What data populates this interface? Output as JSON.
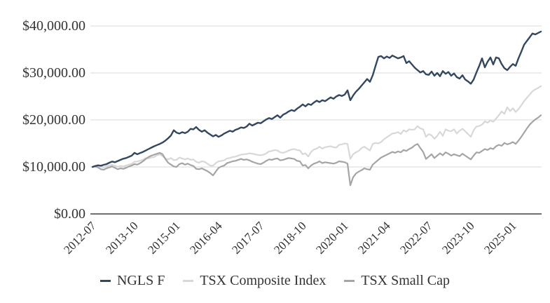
{
  "colors": {
    "background": "#FFFFFF",
    "gridline": "#D9D9D9",
    "axis_line": "#404040",
    "label_text": "#333333"
  },
  "chart_data": {
    "type": "line",
    "title": "",
    "grid": true,
    "legend_position": "bottom",
    "x_unit": "month",
    "x_start_month": "2012-07",
    "x_end_month": "2025-11",
    "x_tick_labels": [
      "2012-07",
      "2013-10",
      "2015-01",
      "2016-04",
      "2017-07",
      "2018-10",
      "2020-01",
      "2021-04",
      "2022-07",
      "2023-10",
      "2025-01"
    ],
    "x_tick_indices": [
      0,
      15,
      30,
      45,
      60,
      75,
      90,
      105,
      120,
      135,
      150
    ],
    "y_tick_labels": [
      "$0.00",
      "$10,000.00",
      "$20,000.00",
      "$30,000.00",
      "$40,000.00"
    ],
    "y_tick_values": [
      0,
      10000,
      20000,
      30000,
      40000
    ],
    "ylim": [
      0,
      42500
    ],
    "series": [
      {
        "name": "NGLS F",
        "color": "#33475E",
        "line_width": 2.4,
        "values": [
          10000,
          10200,
          10350,
          10250,
          10450,
          10600,
          10900,
          11150,
          11000,
          11250,
          11500,
          11750,
          11900,
          12150,
          12400,
          13000,
          12700,
          12950,
          13200,
          13500,
          13800,
          14100,
          14400,
          14650,
          14900,
          15200,
          15600,
          16100,
          16700,
          17800,
          17300,
          17100,
          17400,
          17200,
          17500,
          18100,
          18000,
          18500,
          17900,
          17500,
          17800,
          17300,
          16900,
          16500,
          16800,
          16400,
          16700,
          17100,
          17400,
          17700,
          17500,
          17900,
          18100,
          18400,
          18300,
          18600,
          19200,
          18800,
          19100,
          19400,
          19300,
          19700,
          20100,
          20400,
          20200,
          20600,
          21000,
          20500,
          21100,
          21400,
          21800,
          22100,
          21900,
          22400,
          22800,
          23300,
          22900,
          23400,
          23200,
          23700,
          24100,
          23800,
          24200,
          24000,
          24400,
          24800,
          24500,
          25000,
          25300,
          25100,
          25400,
          26300,
          24200,
          25200,
          26000,
          26600,
          27300,
          28000,
          28700,
          28100,
          29500,
          31500,
          33400,
          33600,
          33100,
          33500,
          33200,
          33700,
          33400,
          33100,
          33300,
          33600,
          32100,
          32500,
          31800,
          31100,
          30600,
          30100,
          30400,
          29700,
          29600,
          30300,
          29400,
          30000,
          29300,
          30400,
          29800,
          30200,
          29400,
          29900,
          29100,
          28800,
          29500,
          28600,
          28200,
          27700,
          28600,
          30100,
          31500,
          33100,
          31200,
          32400,
          33300,
          31800,
          33300,
          33100,
          31900,
          31000,
          30600,
          31300,
          31900,
          31500,
          33100,
          34500,
          36000,
          36800,
          37600,
          38400,
          38200,
          38500,
          38800
        ]
      },
      {
        "name": "TSX Composite Index",
        "color": "#D8D8D8",
        "line_width": 2.2,
        "values": [
          10000,
          10150,
          10300,
          10100,
          9900,
          10150,
          10300,
          10450,
          10250,
          10000,
          10200,
          10100,
          10300,
          10500,
          10650,
          11100,
          11150,
          11350,
          11500,
          11900,
          11800,
          12000,
          12100,
          12500,
          12650,
          12300,
          11800,
          11600,
          11900,
          11450,
          11500,
          12000,
          11800,
          11600,
          11800,
          11500,
          11600,
          11100,
          10900,
          11200,
          11100,
          10700,
          10300,
          10250,
          10800,
          11200,
          11300,
          11400,
          11800,
          11900,
          12100,
          12200,
          12400,
          12600,
          12700,
          12750,
          12900,
          12800,
          12700,
          12550,
          12500,
          12600,
          12900,
          13300,
          13400,
          13600,
          13500,
          13100,
          13000,
          13200,
          13500,
          13700,
          13800,
          13600,
          13500,
          12700,
          12900,
          12200,
          13200,
          13700,
          13900,
          14300,
          13900,
          14200,
          14300,
          14400,
          14200,
          14100,
          14700,
          14800,
          15000,
          14900,
          11700,
          12700,
          13100,
          13400,
          14000,
          14300,
          13900,
          13500,
          14900,
          15100,
          15000,
          15300,
          15900,
          16300,
          16700,
          17100,
          17200,
          17400,
          17000,
          17800,
          17500,
          18000,
          17900,
          18000,
          18700,
          18200,
          18000,
          16400,
          17000,
          16700,
          16000,
          16600,
          17500,
          16600,
          18000,
          17700,
          17600,
          18000,
          17100,
          17700,
          18100,
          17600,
          17000,
          16400,
          17800,
          18600,
          18700,
          19000,
          19700,
          19400,
          19900,
          19600,
          20300,
          21000,
          21800,
          21300,
          22700,
          21900,
          22500,
          21700,
          22300,
          23100,
          24000,
          24700,
          25400,
          26100,
          26500,
          26800,
          27200
        ]
      },
      {
        "name": "TSX Small Cap",
        "color": "#A5A5A5",
        "line_width": 2.2,
        "values": [
          10000,
          10100,
          9900,
          9500,
          9400,
          9700,
          9900,
          10100,
          9800,
          9500,
          9700,
          9600,
          9800,
          10100,
          10300,
          10600,
          10500,
          10800,
          11200,
          11700,
          12100,
          12400,
          12600,
          12800,
          13000,
          12700,
          11700,
          10900,
          10500,
          10100,
          10000,
          10600,
          10800,
          10500,
          10700,
          10400,
          10200,
          9600,
          9500,
          9700,
          9400,
          9100,
          8700,
          8200,
          9000,
          9800,
          10100,
          10300,
          10800,
          11000,
          11200,
          11300,
          11500,
          11700,
          11500,
          11600,
          11400,
          11100,
          10900,
          10700,
          10600,
          10900,
          11300,
          11600,
          11500,
          11700,
          11800,
          11400,
          11500,
          11700,
          11900,
          11800,
          11700,
          11300,
          11200,
          10300,
          10400,
          9700,
          10300,
          10700,
          10900,
          11200,
          10800,
          11000,
          10900,
          10800,
          10700,
          10900,
          11200,
          11100,
          11000,
          10700,
          6100,
          7800,
          8600,
          9000,
          9300,
          9700,
          9500,
          9400,
          10500,
          11000,
          11500,
          12000,
          12300,
          12600,
          12900,
          13200,
          13000,
          13300,
          13100,
          13600,
          13400,
          13800,
          14100,
          14600,
          14900,
          14000,
          13200,
          11700,
          12200,
          12700,
          11900,
          12400,
          12900,
          12500,
          13100,
          12800,
          12400,
          12700,
          12500,
          12300,
          12800,
          12400,
          12000,
          11600,
          12400,
          13100,
          13000,
          13400,
          13800,
          13600,
          14000,
          13800,
          14400,
          14700,
          14500,
          15100,
          14800,
          15000,
          15300,
          14900,
          15600,
          16400,
          17300,
          18200,
          19000,
          19600,
          20100,
          20500,
          21000
        ]
      }
    ]
  }
}
